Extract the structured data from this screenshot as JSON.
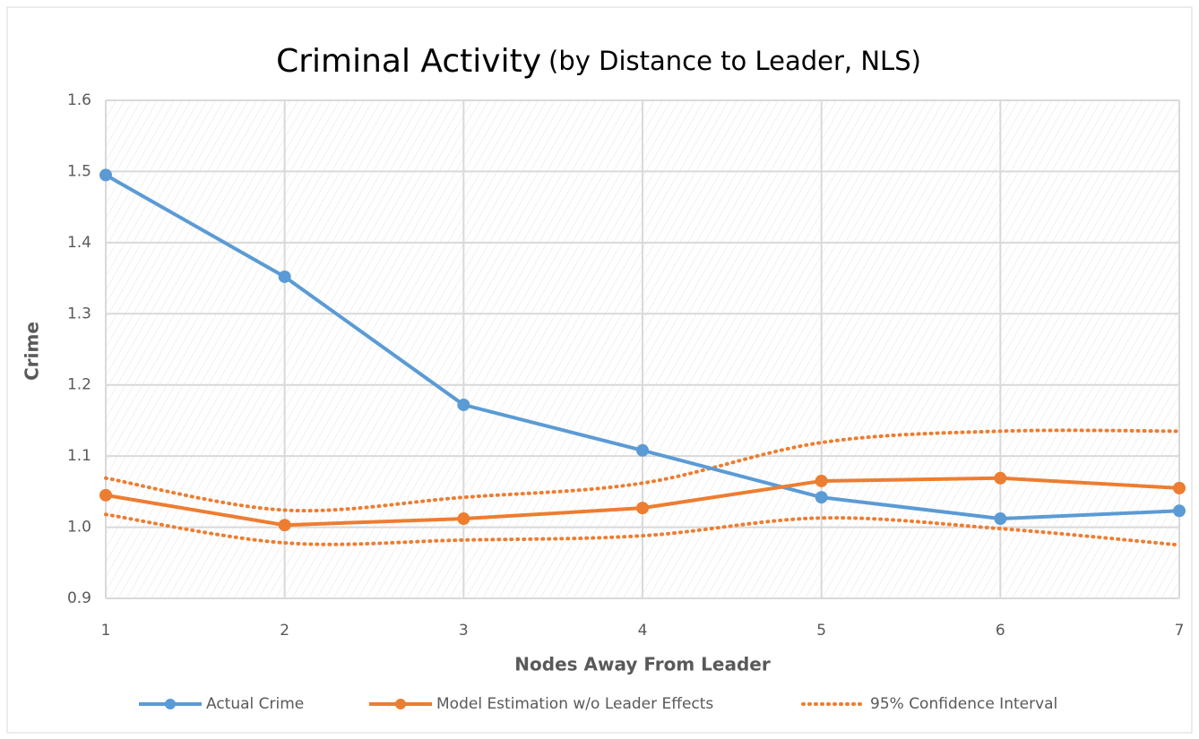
{
  "chart_data": {
    "type": "line",
    "title": "Criminal Activity",
    "subtitle": "(by Distance to Leader, NLS)",
    "x_label": "Nodes Away From Leader",
    "y_label": "Crime",
    "x": [
      1,
      2,
      3,
      4,
      5,
      6,
      7
    ],
    "series": [
      {
        "name": "Actual Crime",
        "color": "#5b9bd5",
        "values": [
          1.495,
          1.352,
          1.172,
          1.108,
          1.042,
          1.012,
          1.023
        ]
      },
      {
        "name": "Model Estimation w/o Leader Effects",
        "color": "#ed7d31",
        "values": [
          1.045,
          1.003,
          1.012,
          1.027,
          1.065,
          1.069,
          1.055
        ]
      }
    ],
    "confidence_interval": {
      "name": "95% Confidence Interval",
      "color": "#ed7d31",
      "upper": [
        1.069,
        1.024,
        1.042,
        1.062,
        1.119,
        1.135,
        1.135
      ],
      "lower": [
        1.018,
        0.978,
        0.982,
        0.988,
        1.013,
        0.998,
        0.975
      ]
    },
    "xlim": [
      1,
      7
    ],
    "xticks": [
      1,
      2,
      3,
      4,
      5,
      6,
      7
    ],
    "ylim": [
      0.9,
      1.6
    ],
    "yticks": [
      0.9,
      {
        "value": 1,
        "label": "1.0"
      },
      1.1,
      1.2,
      1.3,
      1.4,
      1.5,
      1.6
    ],
    "grid": true,
    "legend": "bottom"
  }
}
